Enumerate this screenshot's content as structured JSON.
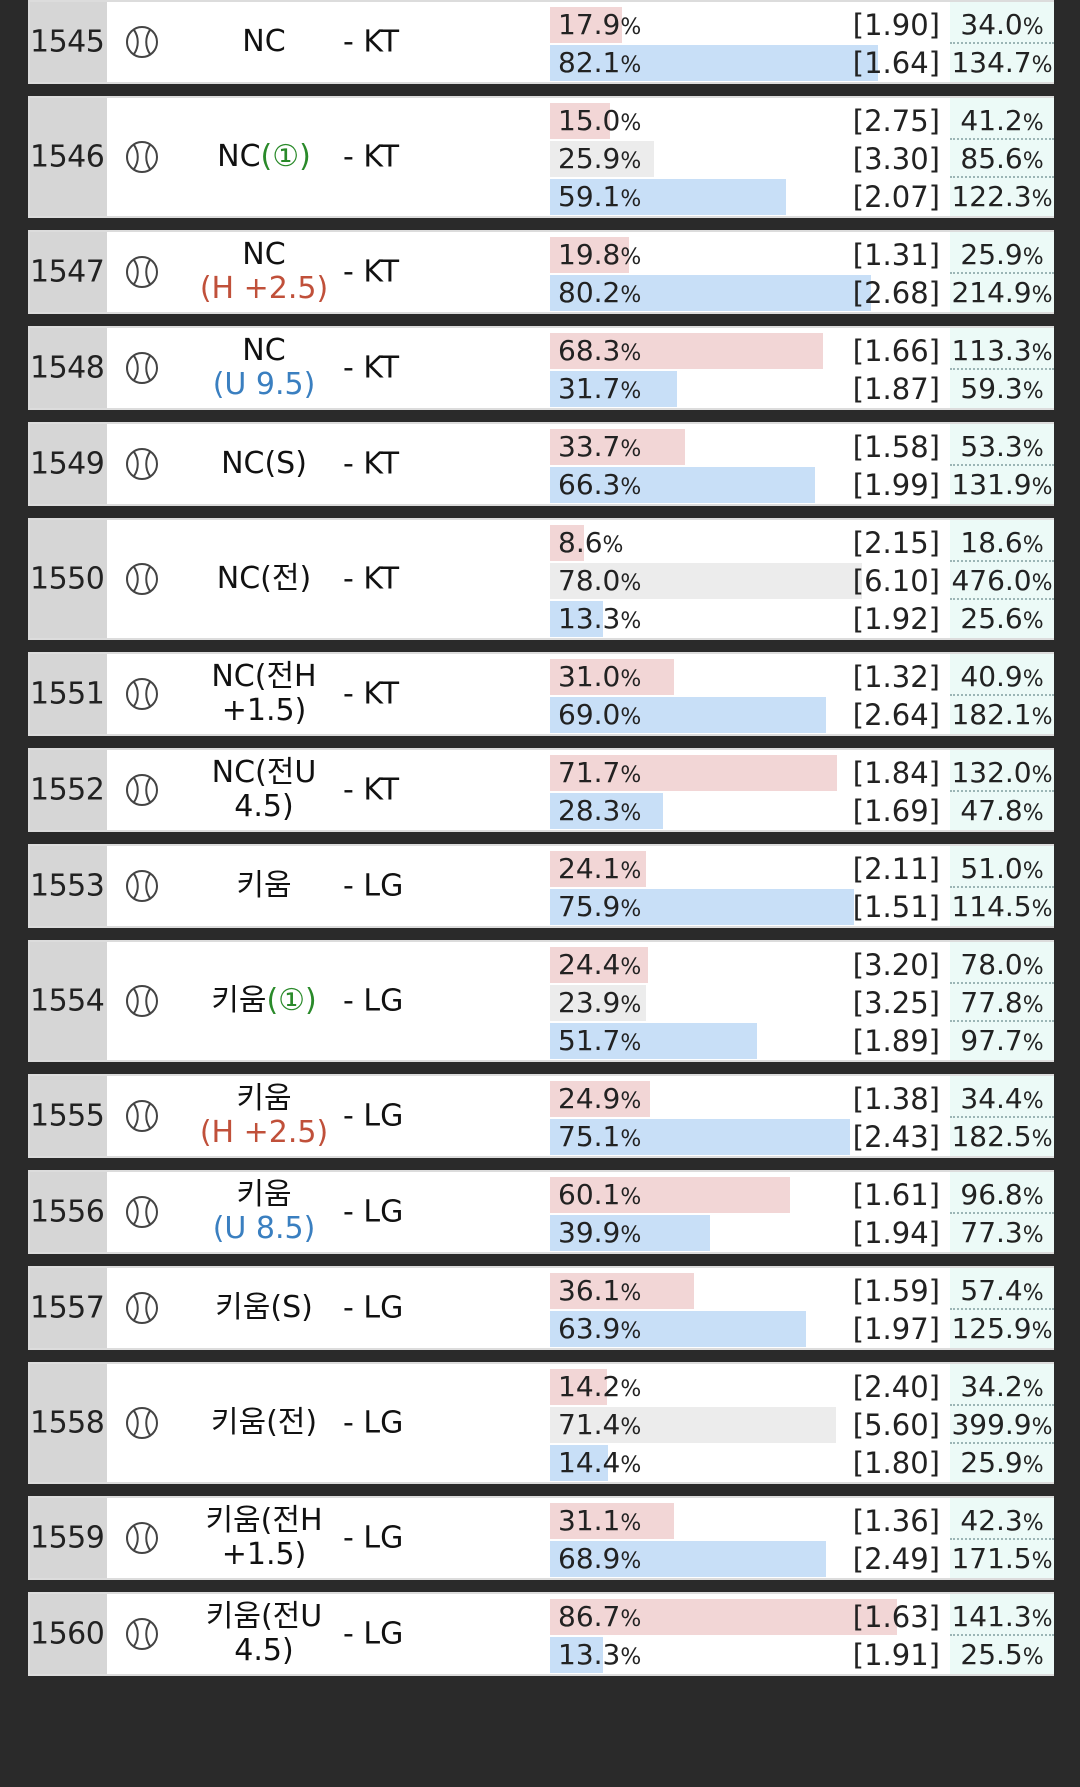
{
  "games": [
    {
      "id": "1545",
      "home": "NC",
      "home_sub": "",
      "home_sub_color": "",
      "away": "- KT",
      "outcomes": [
        {
          "pct": "17.9",
          "odds": "[1.90]",
          "rate": "34.0",
          "type": "home"
        },
        {
          "pct": "82.1",
          "odds": "[1.64]",
          "rate": "134.7",
          "type": "away"
        }
      ]
    },
    {
      "id": "1546",
      "home": "NC",
      "home_inline": "(①)",
      "home_inline_color": "green",
      "home_sub": "",
      "away": "- KT",
      "outcomes": [
        {
          "pct": "15.0",
          "odds": "[2.75]",
          "rate": "41.2",
          "type": "home"
        },
        {
          "pct": "25.9",
          "odds": "[3.30]",
          "rate": "85.6",
          "type": "draw"
        },
        {
          "pct": "59.1",
          "odds": "[2.07]",
          "rate": "122.3",
          "type": "away"
        }
      ]
    },
    {
      "id": "1547",
      "home": "NC",
      "home_sub": "(H +2.5)",
      "home_sub_color": "red",
      "away": "- KT",
      "outcomes": [
        {
          "pct": "19.8",
          "odds": "[1.31]",
          "rate": "25.9",
          "type": "home"
        },
        {
          "pct": "80.2",
          "odds": "[2.68]",
          "rate": "214.9",
          "type": "away"
        }
      ]
    },
    {
      "id": "1548",
      "home": "NC",
      "home_sub": "(U 9.5)",
      "home_sub_color": "blue",
      "away": "- KT",
      "outcomes": [
        {
          "pct": "68.3",
          "odds": "[1.66]",
          "rate": "113.3",
          "type": "home"
        },
        {
          "pct": "31.7",
          "odds": "[1.87]",
          "rate": "59.3",
          "type": "away"
        }
      ]
    },
    {
      "id": "1549",
      "home": "NC(S)",
      "home_sub": "",
      "away": "- KT",
      "outcomes": [
        {
          "pct": "33.7",
          "odds": "[1.58]",
          "rate": "53.3",
          "type": "home"
        },
        {
          "pct": "66.3",
          "odds": "[1.99]",
          "rate": "131.9",
          "type": "away"
        }
      ]
    },
    {
      "id": "1550",
      "home": "NC(전)",
      "home_sub": "",
      "away": "- KT",
      "outcomes": [
        {
          "pct": "8.6",
          "odds": "[2.15]",
          "rate": "18.6",
          "type": "home"
        },
        {
          "pct": "78.0",
          "odds": "[6.10]",
          "rate": "476.0",
          "type": "draw"
        },
        {
          "pct": "13.3",
          "odds": "[1.92]",
          "rate": "25.6",
          "type": "away"
        }
      ]
    },
    {
      "id": "1551",
      "home": "NC(전H",
      "home_sub": "+1.5)",
      "home_sub_color": "",
      "away": "- KT",
      "outcomes": [
        {
          "pct": "31.0",
          "odds": "[1.32]",
          "rate": "40.9",
          "type": "home"
        },
        {
          "pct": "69.0",
          "odds": "[2.64]",
          "rate": "182.1",
          "type": "away"
        }
      ]
    },
    {
      "id": "1552",
      "home": "NC(전U",
      "home_sub": "4.5)",
      "home_sub_color": "",
      "away": "- KT",
      "outcomes": [
        {
          "pct": "71.7",
          "odds": "[1.84]",
          "rate": "132.0",
          "type": "home"
        },
        {
          "pct": "28.3",
          "odds": "[1.69]",
          "rate": "47.8",
          "type": "away"
        }
      ]
    },
    {
      "id": "1553",
      "home": "키움",
      "home_sub": "",
      "away": "- LG",
      "outcomes": [
        {
          "pct": "24.1",
          "odds": "[2.11]",
          "rate": "51.0",
          "type": "home"
        },
        {
          "pct": "75.9",
          "odds": "[1.51]",
          "rate": "114.5",
          "type": "away"
        }
      ]
    },
    {
      "id": "1554",
      "home": "키움",
      "home_inline": "(①)",
      "home_inline_color": "green",
      "home_sub": "",
      "away": "- LG",
      "outcomes": [
        {
          "pct": "24.4",
          "odds": "[3.20]",
          "rate": "78.0",
          "type": "home"
        },
        {
          "pct": "23.9",
          "odds": "[3.25]",
          "rate": "77.8",
          "type": "draw"
        },
        {
          "pct": "51.7",
          "odds": "[1.89]",
          "rate": "97.7",
          "type": "away"
        }
      ]
    },
    {
      "id": "1555",
      "home": "키움",
      "home_sub": "(H +2.5)",
      "home_sub_color": "red",
      "away": "- LG",
      "outcomes": [
        {
          "pct": "24.9",
          "odds": "[1.38]",
          "rate": "34.4",
          "type": "home"
        },
        {
          "pct": "75.1",
          "odds": "[2.43]",
          "rate": "182.5",
          "type": "away"
        }
      ]
    },
    {
      "id": "1556",
      "home": "키움",
      "home_sub": "(U 8.5)",
      "home_sub_color": "blue",
      "away": "- LG",
      "outcomes": [
        {
          "pct": "60.1",
          "odds": "[1.61]",
          "rate": "96.8",
          "type": "home"
        },
        {
          "pct": "39.9",
          "odds": "[1.94]",
          "rate": "77.3",
          "type": "away"
        }
      ]
    },
    {
      "id": "1557",
      "home": "키움(S)",
      "home_sub": "",
      "away": "- LG",
      "outcomes": [
        {
          "pct": "36.1",
          "odds": "[1.59]",
          "rate": "57.4",
          "type": "home"
        },
        {
          "pct": "63.9",
          "odds": "[1.97]",
          "rate": "125.9",
          "type": "away"
        }
      ]
    },
    {
      "id": "1558",
      "home": "키움(전)",
      "home_sub": "",
      "away": "- LG",
      "outcomes": [
        {
          "pct": "14.2",
          "odds": "[2.40]",
          "rate": "34.2",
          "type": "home"
        },
        {
          "pct": "71.4",
          "odds": "[5.60]",
          "rate": "399.9",
          "type": "draw"
        },
        {
          "pct": "14.4",
          "odds": "[1.80]",
          "rate": "25.9",
          "type": "away"
        }
      ]
    },
    {
      "id": "1559",
      "home": "키움(전H",
      "home_sub": "+1.5)",
      "home_sub_color": "",
      "away": "- LG",
      "outcomes": [
        {
          "pct": "31.1",
          "odds": "[1.36]",
          "rate": "42.3",
          "type": "home"
        },
        {
          "pct": "68.9",
          "odds": "[2.49]",
          "rate": "171.5",
          "type": "away"
        }
      ]
    },
    {
      "id": "1560",
      "home": "키움(전U",
      "home_sub": "4.5)",
      "home_sub_color": "",
      "away": "- LG",
      "outcomes": [
        {
          "pct": "86.7",
          "odds": "[1.63]",
          "rate": "141.3",
          "type": "home"
        },
        {
          "pct": "13.3",
          "odds": "[1.91]",
          "rate": "25.5",
          "type": "away"
        }
      ]
    }
  ],
  "pct_suffix": "%",
  "colors": {
    "home_bar": "#f2d6d6",
    "draw_bar": "#ececec",
    "away_bar": "#c8dff7",
    "rate_bg": "#ecfaf7",
    "sub_green": "#2a8a2a",
    "sub_red": "#c0503a",
    "sub_blue": "#3a7fc0"
  }
}
